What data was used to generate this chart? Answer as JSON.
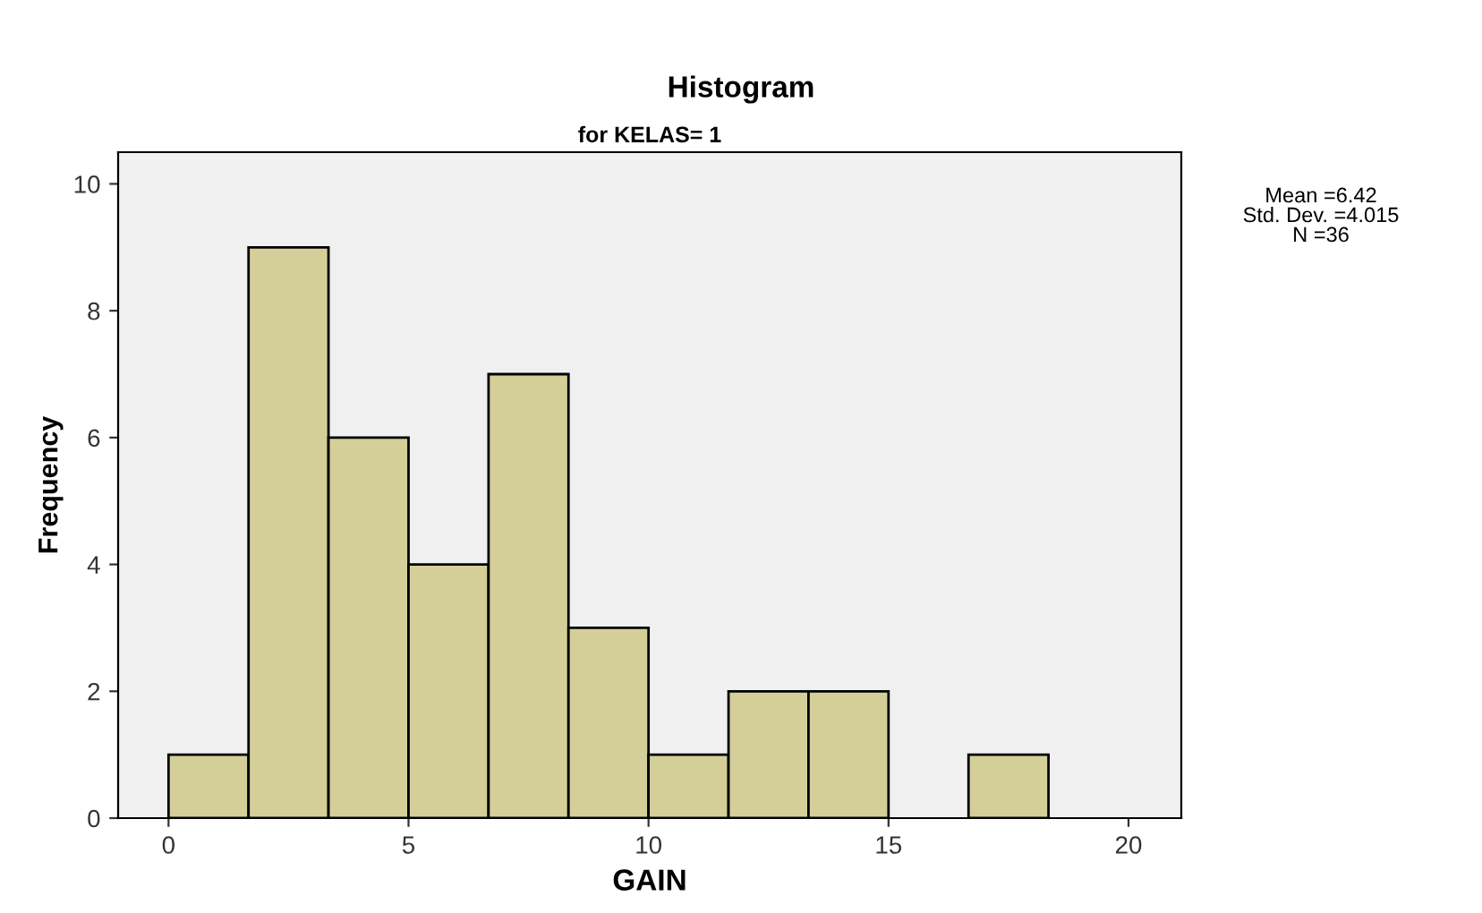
{
  "chart_data": {
    "type": "histogram",
    "title": "Histogram",
    "subtitle": "for KELAS= 1",
    "xlabel": "GAIN",
    "ylabel": "Frequency",
    "bins": [
      0,
      1.667,
      3.333,
      5,
      6.667,
      8.333,
      10,
      11.667,
      13.333,
      15,
      16.667,
      18.333
    ],
    "values": [
      1,
      9,
      6,
      4,
      7,
      3,
      1,
      2,
      2,
      0,
      1
    ],
    "color": "#d4cf98",
    "xlim": [
      -1.05,
      21.1
    ],
    "ylim": [
      0,
      10.5
    ],
    "xticks": [
      0,
      5,
      10,
      15,
      20
    ],
    "yticks": [
      0,
      2,
      4,
      6,
      8,
      10
    ],
    "grid": false,
    "annotations": [
      "Mean =6.42",
      "Std. Dev. =4.015",
      "N =36"
    ]
  }
}
